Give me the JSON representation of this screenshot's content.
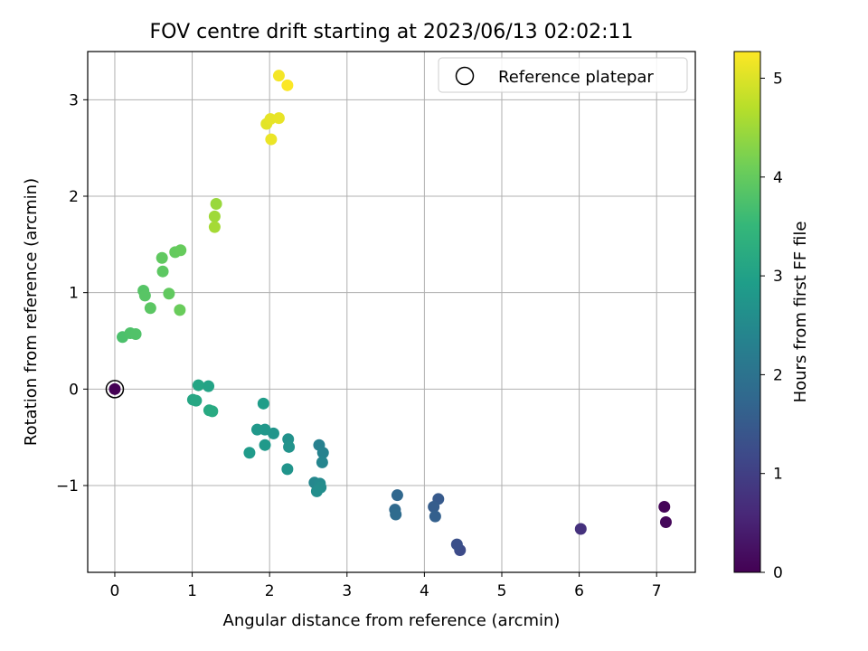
{
  "chart_data": {
    "type": "scatter",
    "title": "FOV centre drift starting at 2023/06/13 02:02:11",
    "xlabel": "Angular distance from reference (arcmin)",
    "ylabel": "Rotation from reference (arcmin)",
    "xlim": [
      -0.35,
      7.5
    ],
    "ylim": [
      -1.9,
      3.5
    ],
    "xticks": [
      0,
      1,
      2,
      3,
      4,
      5,
      6,
      7
    ],
    "yticks": [
      -1,
      0,
      1,
      2,
      3
    ],
    "grid": true,
    "legend": {
      "position": "top-right",
      "entries": [
        "Reference platepar"
      ]
    },
    "colorbar": {
      "label": "Hours from first FF file",
      "min": 0,
      "max": 5.27,
      "ticks": [
        0,
        1,
        2,
        3,
        4,
        5
      ],
      "colormap": "viridis"
    },
    "reference_point": {
      "x": 0,
      "y": 0
    },
    "points": [
      {
        "x": 0.0,
        "y": 0.0,
        "c": 0.0
      },
      {
        "x": 7.1,
        "y": -1.22,
        "c": 0.05
      },
      {
        "x": 7.12,
        "y": -1.38,
        "c": 0.1
      },
      {
        "x": 6.02,
        "y": -1.45,
        "c": 0.75
      },
      {
        "x": 4.46,
        "y": -1.67,
        "c": 1.2
      },
      {
        "x": 4.42,
        "y": -1.61,
        "c": 1.3
      },
      {
        "x": 4.18,
        "y": -1.14,
        "c": 1.5
      },
      {
        "x": 4.12,
        "y": -1.22,
        "c": 1.55
      },
      {
        "x": 4.14,
        "y": -1.32,
        "c": 1.6
      },
      {
        "x": 3.65,
        "y": -1.1,
        "c": 1.75
      },
      {
        "x": 3.62,
        "y": -1.25,
        "c": 1.8
      },
      {
        "x": 3.63,
        "y": -1.3,
        "c": 1.85
      },
      {
        "x": 2.64,
        "y": -0.58,
        "c": 2.3
      },
      {
        "x": 2.69,
        "y": -0.66,
        "c": 2.35
      },
      {
        "x": 2.68,
        "y": -0.76,
        "c": 2.4
      },
      {
        "x": 2.58,
        "y": -0.97,
        "c": 2.45
      },
      {
        "x": 2.65,
        "y": -0.98,
        "c": 2.5
      },
      {
        "x": 2.66,
        "y": -1.02,
        "c": 2.55
      },
      {
        "x": 2.61,
        "y": -1.06,
        "c": 2.6
      },
      {
        "x": 2.24,
        "y": -0.52,
        "c": 2.65
      },
      {
        "x": 2.25,
        "y": -0.6,
        "c": 2.7
      },
      {
        "x": 2.23,
        "y": -0.83,
        "c": 2.72
      },
      {
        "x": 2.05,
        "y": -0.46,
        "c": 2.75
      },
      {
        "x": 1.94,
        "y": -0.42,
        "c": 2.78
      },
      {
        "x": 1.84,
        "y": -0.42,
        "c": 2.8
      },
      {
        "x": 1.94,
        "y": -0.58,
        "c": 2.83
      },
      {
        "x": 1.74,
        "y": -0.66,
        "c": 2.86
      },
      {
        "x": 1.92,
        "y": -0.15,
        "c": 2.9
      },
      {
        "x": 1.21,
        "y": 0.03,
        "c": 3.05
      },
      {
        "x": 1.08,
        "y": 0.04,
        "c": 3.1
      },
      {
        "x": 1.01,
        "y": -0.11,
        "c": 3.12
      },
      {
        "x": 1.05,
        "y": -0.12,
        "c": 3.15
      },
      {
        "x": 1.22,
        "y": -0.22,
        "c": 3.18
      },
      {
        "x": 1.26,
        "y": -0.23,
        "c": 3.2
      },
      {
        "x": 0.1,
        "y": 0.54,
        "c": 3.75
      },
      {
        "x": 0.2,
        "y": 0.58,
        "c": 3.78
      },
      {
        "x": 0.27,
        "y": 0.57,
        "c": 3.8
      },
      {
        "x": 0.37,
        "y": 1.02,
        "c": 3.85
      },
      {
        "x": 0.39,
        "y": 0.97,
        "c": 3.87
      },
      {
        "x": 0.46,
        "y": 0.84,
        "c": 3.9
      },
      {
        "x": 0.62,
        "y": 1.22,
        "c": 3.92
      },
      {
        "x": 0.61,
        "y": 1.36,
        "c": 3.95
      },
      {
        "x": 0.7,
        "y": 0.99,
        "c": 3.97
      },
      {
        "x": 0.78,
        "y": 1.42,
        "c": 4.0
      },
      {
        "x": 0.85,
        "y": 1.44,
        "c": 4.02
      },
      {
        "x": 0.84,
        "y": 0.82,
        "c": 4.05
      },
      {
        "x": 1.31,
        "y": 1.92,
        "c": 4.45
      },
      {
        "x": 1.29,
        "y": 1.79,
        "c": 4.5
      },
      {
        "x": 1.29,
        "y": 1.68,
        "c": 4.55
      },
      {
        "x": 1.96,
        "y": 2.75,
        "c": 5.05
      },
      {
        "x": 2.01,
        "y": 2.8,
        "c": 5.08
      },
      {
        "x": 2.12,
        "y": 2.81,
        "c": 5.1
      },
      {
        "x": 2.02,
        "y": 2.59,
        "c": 5.12
      },
      {
        "x": 2.12,
        "y": 3.25,
        "c": 5.2
      },
      {
        "x": 2.23,
        "y": 3.15,
        "c": 5.25
      }
    ]
  }
}
